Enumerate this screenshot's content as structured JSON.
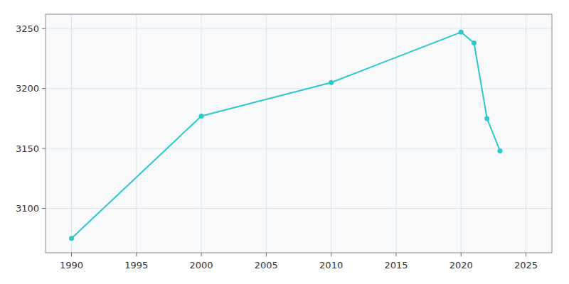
{
  "chart_data": {
    "type": "line",
    "x": [
      1990,
      2000,
      2010,
      2020,
      2021,
      2022,
      2023
    ],
    "values": [
      3075,
      3177,
      3205,
      3247,
      3238,
      3175,
      3148
    ],
    "color": "#2ec8c8",
    "marker": "circle",
    "xlim": [
      1988,
      2027
    ],
    "ylim": [
      3063,
      3262
    ],
    "xticks": [
      1990,
      1995,
      2000,
      2005,
      2010,
      2015,
      2020,
      2025
    ],
    "yticks": [
      3100,
      3150,
      3200,
      3250
    ],
    "grid": true
  }
}
